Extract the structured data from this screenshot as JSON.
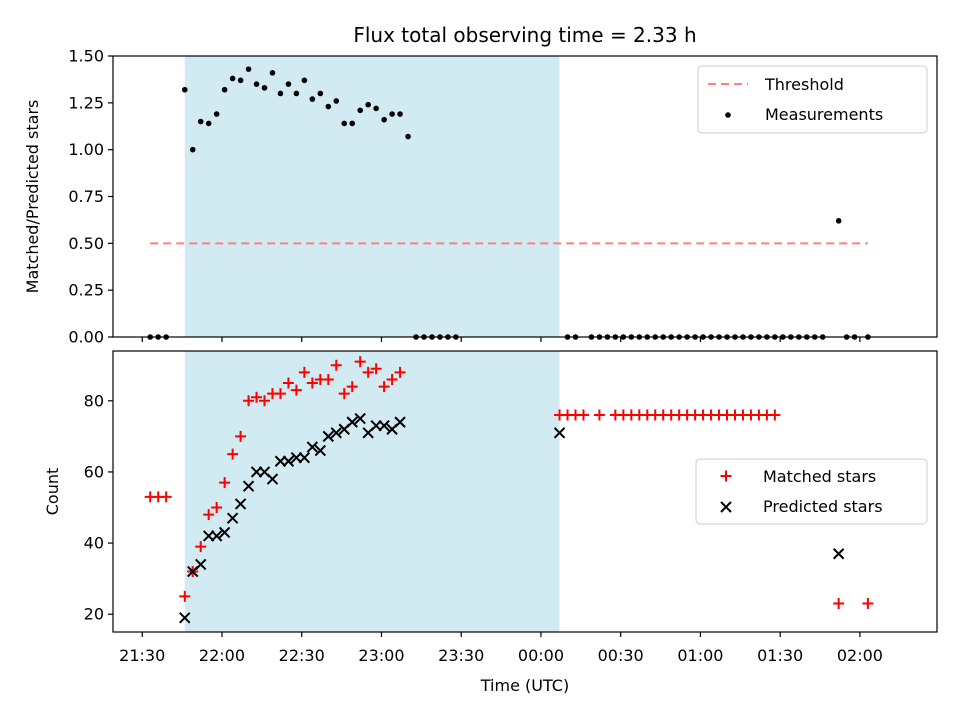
{
  "chart_data": [
    {
      "type": "scatter",
      "panel": "top",
      "title": "Flux total observing time = 2.33 h",
      "ylabel": "Matched/Predicted stars",
      "xlabel": "",
      "ylim": [
        0,
        1.5
      ],
      "yticks": [
        "0.00",
        "0.25",
        "0.50",
        "0.75",
        "1.00",
        "1.25",
        "1.50"
      ],
      "threshold": {
        "name": "Threshold",
        "value": 0.5,
        "x_start": "21:33",
        "x_end": "02:03",
        "color": "#ff7f7f",
        "style": "dashed"
      },
      "observing_window": {
        "start": "21:46",
        "end": "00:07",
        "color": "#add8e6"
      },
      "legend_position": "top-right",
      "series": [
        {
          "name": "Measurements",
          "color": "#000000",
          "marker": "dot",
          "x": [
            "21:33",
            "21:36",
            "21:39",
            "21:46",
            "21:49",
            "21:52",
            "21:55",
            "21:58",
            "22:01",
            "22:04",
            "22:07",
            "22:10",
            "22:13",
            "22:16",
            "22:19",
            "22:22",
            "22:25",
            "22:28",
            "22:31",
            "22:34",
            "22:37",
            "22:40",
            "22:43",
            "22:46",
            "22:49",
            "22:52",
            "22:55",
            "22:58",
            "23:01",
            "23:04",
            "23:07",
            "23:10",
            "23:13",
            "23:16",
            "23:19",
            "23:22",
            "23:25",
            "23:28",
            "00:10",
            "00:13",
            "00:19",
            "00:22",
            "00:25",
            "00:28",
            "00:31",
            "00:34",
            "00:37",
            "00:40",
            "00:43",
            "00:46",
            "00:49",
            "00:52",
            "00:55",
            "00:58",
            "01:01",
            "01:04",
            "01:07",
            "01:10",
            "01:13",
            "01:16",
            "01:19",
            "01:22",
            "01:25",
            "01:28",
            "01:31",
            "01:34",
            "01:37",
            "01:40",
            "01:43",
            "01:46",
            "01:52",
            "01:55",
            "01:58",
            "02:03"
          ],
          "y": [
            0,
            0,
            0,
            1.32,
            1.0,
            1.15,
            1.14,
            1.19,
            1.32,
            1.38,
            1.37,
            1.43,
            1.35,
            1.33,
            1.41,
            1.3,
            1.35,
            1.3,
            1.37,
            1.27,
            1.3,
            1.23,
            1.26,
            1.14,
            1.14,
            1.21,
            1.24,
            1.22,
            1.16,
            1.19,
            1.19,
            1.07,
            0,
            0,
            0,
            0,
            0,
            0,
            0,
            0,
            0,
            0,
            0,
            0,
            0,
            0,
            0,
            0,
            0,
            0,
            0,
            0,
            0,
            0,
            0,
            0,
            0,
            0,
            0,
            0,
            0,
            0,
            0,
            0,
            0,
            0,
            0,
            0,
            0,
            0,
            0.62,
            0,
            0,
            0
          ]
        }
      ]
    },
    {
      "type": "scatter",
      "panel": "bottom",
      "title": "",
      "ylabel": "Count",
      "xlabel": "Time (UTC)",
      "ylim": [
        15,
        94
      ],
      "yticks": [
        "20",
        "40",
        "60",
        "80"
      ],
      "xlim": [
        "21:19",
        "02:29"
      ],
      "xticks": [
        "21:30",
        "22:00",
        "22:30",
        "23:00",
        "23:30",
        "00:00",
        "00:30",
        "01:00",
        "01:30",
        "02:00"
      ],
      "observing_window": {
        "start": "21:46",
        "end": "00:07",
        "color": "#add8e6"
      },
      "legend_position": "center-right",
      "series": [
        {
          "name": "Matched stars",
          "color": "#ff0000",
          "marker": "plus",
          "points": [
            [
              "21:33",
              53
            ],
            [
              "21:36",
              53
            ],
            [
              "21:39",
              53
            ],
            [
              "21:46",
              25
            ],
            [
              "21:49",
              32
            ],
            [
              "21:52",
              39
            ],
            [
              "21:55",
              48
            ],
            [
              "21:58",
              50
            ],
            [
              "22:01",
              57
            ],
            [
              "22:04",
              65
            ],
            [
              "22:07",
              70
            ],
            [
              "22:10",
              80
            ],
            [
              "22:13",
              81
            ],
            [
              "22:16",
              80
            ],
            [
              "22:19",
              82
            ],
            [
              "22:22",
              82
            ],
            [
              "22:25",
              85
            ],
            [
              "22:28",
              83
            ],
            [
              "22:31",
              88
            ],
            [
              "22:34",
              85
            ],
            [
              "22:37",
              86
            ],
            [
              "22:40",
              86
            ],
            [
              "22:43",
              90
            ],
            [
              "22:46",
              82
            ],
            [
              "22:49",
              84
            ],
            [
              "22:52",
              91
            ],
            [
              "22:55",
              88
            ],
            [
              "22:58",
              89
            ],
            [
              "23:01",
              84
            ],
            [
              "23:04",
              86
            ],
            [
              "23:07",
              88
            ],
            [
              "00:07",
              76
            ],
            [
              "00:10",
              76
            ],
            [
              "00:13",
              76
            ],
            [
              "00:16",
              76
            ],
            [
              "00:22",
              76
            ],
            [
              "00:28",
              76
            ],
            [
              "00:31",
              76
            ],
            [
              "00:34",
              76
            ],
            [
              "00:37",
              76
            ],
            [
              "00:40",
              76
            ],
            [
              "00:43",
              76
            ],
            [
              "00:46",
              76
            ],
            [
              "00:49",
              76
            ],
            [
              "00:52",
              76
            ],
            [
              "00:55",
              76
            ],
            [
              "00:58",
              76
            ],
            [
              "01:01",
              76
            ],
            [
              "01:04",
              76
            ],
            [
              "01:07",
              76
            ],
            [
              "01:10",
              76
            ],
            [
              "01:13",
              76
            ],
            [
              "01:16",
              76
            ],
            [
              "01:19",
              76
            ],
            [
              "01:22",
              76
            ],
            [
              "01:25",
              76
            ],
            [
              "01:28",
              76
            ],
            [
              "01:52",
              23
            ],
            [
              "02:03",
              23
            ]
          ]
        },
        {
          "name": "Predicted stars",
          "color": "#000000",
          "marker": "x",
          "points": [
            [
              "21:46",
              19
            ],
            [
              "21:49",
              32
            ],
            [
              "21:52",
              34
            ],
            [
              "21:55",
              42
            ],
            [
              "21:58",
              42
            ],
            [
              "22:01",
              43
            ],
            [
              "22:04",
              47
            ],
            [
              "22:07",
              51
            ],
            [
              "22:10",
              56
            ],
            [
              "22:13",
              60
            ],
            [
              "22:16",
              60
            ],
            [
              "22:19",
              58
            ],
            [
              "22:22",
              63
            ],
            [
              "22:25",
              63
            ],
            [
              "22:28",
              64
            ],
            [
              "22:31",
              64
            ],
            [
              "22:34",
              67
            ],
            [
              "22:37",
              66
            ],
            [
              "22:40",
              70
            ],
            [
              "22:43",
              71
            ],
            [
              "22:46",
              72
            ],
            [
              "22:49",
              74
            ],
            [
              "22:52",
              75
            ],
            [
              "22:55",
              71
            ],
            [
              "22:58",
              73
            ],
            [
              "23:01",
              73
            ],
            [
              "23:04",
              72
            ],
            [
              "23:07",
              74
            ],
            [
              "00:07",
              71
            ],
            [
              "01:52",
              37
            ]
          ]
        }
      ]
    }
  ]
}
